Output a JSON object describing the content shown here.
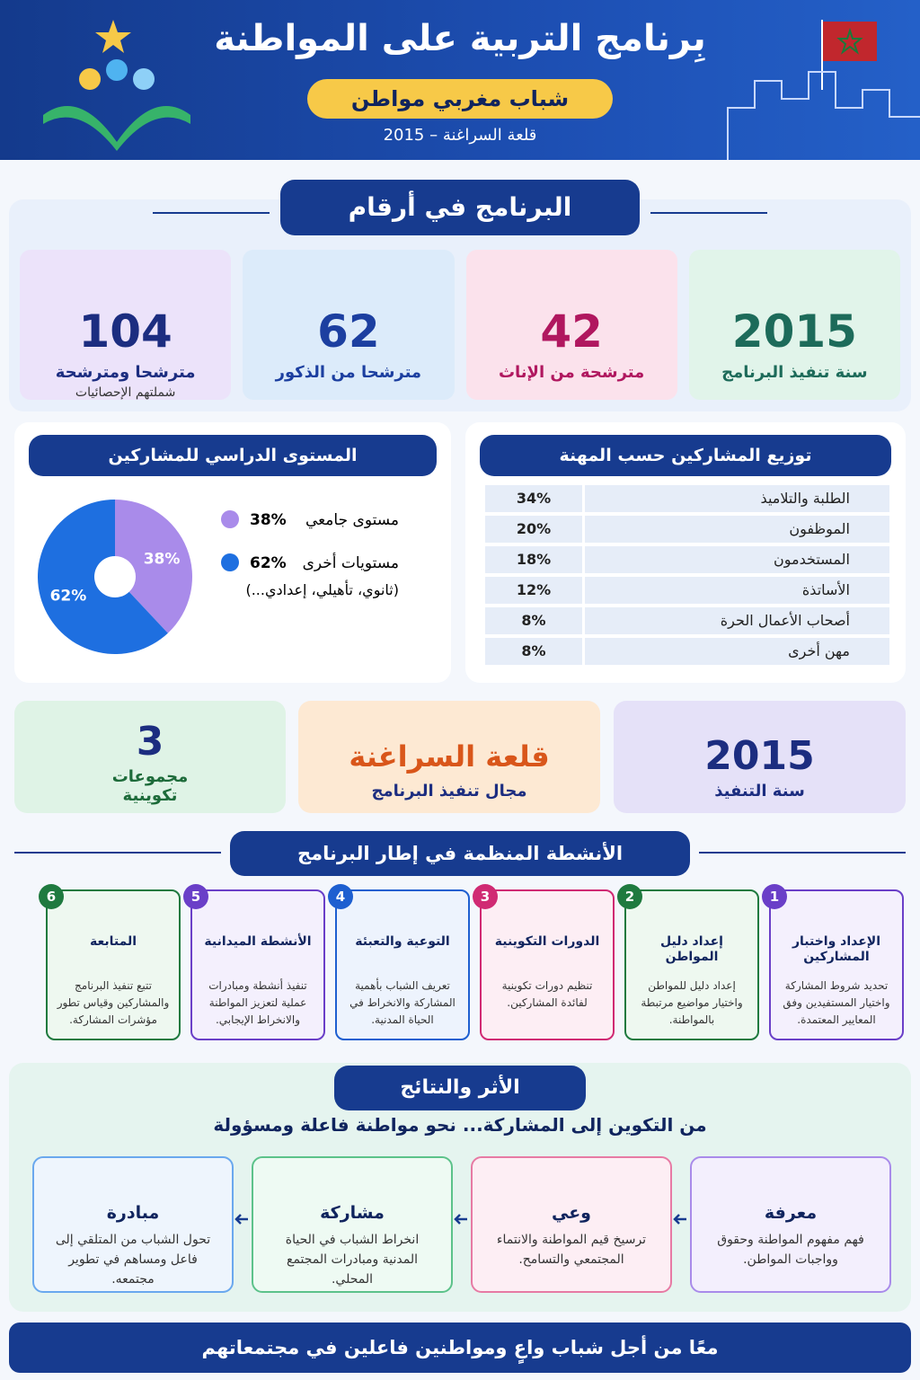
{
  "header": {
    "title": "بِرنامج التربية على المواطنة",
    "subtitle": "شباب مغربي مواطن",
    "location": "قلعة السراغنة – 2015"
  },
  "numbers": {
    "title": "البرنامج في أرقام",
    "cards": [
      {
        "value": 2015,
        "label": "سنة تنفيذ البرنامج"
      },
      {
        "value": 42,
        "label": "مترشحة من الإناث"
      },
      {
        "value": 62,
        "label": "مترشحا من الذكور"
      },
      {
        "value": 104,
        "label": "مترشحا ومترشحة",
        "note": "شملتهم الإحصائيات"
      }
    ]
  },
  "chart_data": {
    "type": "pie",
    "title": "المستوى الدراسي للمشاركين",
    "categories": [
      "مستوى جامعي",
      "مستويات أخرى"
    ],
    "values": [
      38,
      62
    ],
    "value_labels": [
      "38%",
      "62%"
    ],
    "colors": [
      "#a98bea",
      "#1e6fe0"
    ],
    "note": "(ثانوي، تأهيلي، إعدادي...)"
  },
  "profession": {
    "title": "توزيع المشاركين حسب المهنة",
    "rows": [
      {
        "label": "الطلبة والتلاميذ",
        "share": "34%"
      },
      {
        "label": "الموظفون",
        "share": "20%"
      },
      {
        "label": "المستخدمون",
        "share": "18%"
      },
      {
        "label": "الأساتذة",
        "share": "12%"
      },
      {
        "label": "أصحاب الأعمال الحرة",
        "share": "8%"
      },
      {
        "label": "مهن أخرى",
        "share": "8%"
      }
    ]
  },
  "summary": [
    {
      "value": 2015,
      "label": "سنة التنفيذ"
    },
    {
      "value": "قلعة السراغنة",
      "label": "مجال تنفيذ البرنامج"
    },
    {
      "value": 3,
      "label": "مجموعات تكوينية"
    }
  ],
  "activities": {
    "title": "الأنشطة المنظمة في إطار البرنامج",
    "items": [
      {
        "num": 1,
        "title": "الإعداد واختبار المشاركين",
        "text": "تحديد شروط المشاركة واختيار المستفيدين وفق المعايير المعتمدة."
      },
      {
        "num": 2,
        "title": "إعداد دليل المواطن",
        "text": "إعداد دليل للمواطن واختيار مواضيع مرتبطة بالمواطنة."
      },
      {
        "num": 3,
        "title": "الدورات التكوينية",
        "text": "تنظيم دورات تكوينية لفائدة المشاركين."
      },
      {
        "num": 4,
        "title": "التوعية والتعبئة",
        "text": "تعريف الشباب بأهمية المشاركة والانخراط في الحياة المدنية."
      },
      {
        "num": 5,
        "title": "الأنشطة الميدانية",
        "text": "تنفيذ أنشطة ومبادرات عملية لتعزيز المواطنة والانخراط الإيجابي."
      },
      {
        "num": 6,
        "title": "المتابعة",
        "text": "تتبع تنفيذ البرنامج والمشاركين وقياس تطور مؤشرات المشاركة."
      }
    ]
  },
  "impact": {
    "title": "الأثر والنتائج",
    "subtitle": "من التكوين إلى المشاركة... نحو مواطنة فاعلة ومسؤولة",
    "items": [
      {
        "title": "معرفة",
        "text": "فهم مفهوم المواطنة وحقوق وواجبات المواطن."
      },
      {
        "title": "وعي",
        "text": "ترسيخ قيم المواطنة والانتماء المجتمعي والتسامح."
      },
      {
        "title": "مشاركة",
        "text": "انخراط الشباب في الحياة المدنية ومبادرات المجتمع المحلي."
      },
      {
        "title": "مبادرة",
        "text": "تحول الشباب من المتلقي إلى فاعل ومساهم في تطوير مجتمعه."
      }
    ]
  },
  "footer": "معًا من أجل شباب واعٍ ومواطنين فاعلين في مجتمعاتهم"
}
